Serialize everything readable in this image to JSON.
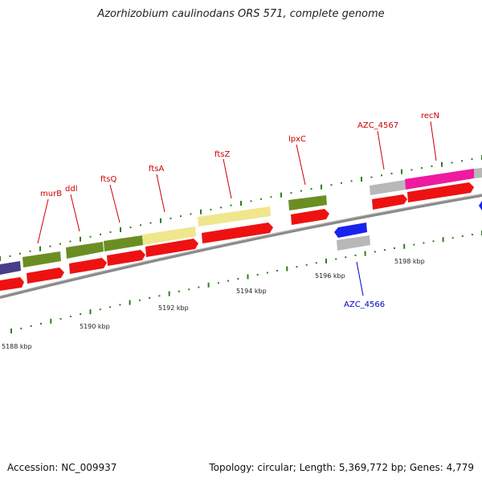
{
  "title": "Azorhizobium caulinodans ORS 571, complete genome",
  "footer": {
    "accession": "Accession: NC_009937",
    "info": "Topology: circular; Length: 5,369,772 bp; Genes: 4,779"
  },
  "colors": {
    "backbone": "#7a7a7a",
    "cds": "#ee1111",
    "gene_olive": "#6b8e23",
    "gene_khaki": "#f0e68c",
    "gene_magenta": "#ee1aa0",
    "gene_blue": "#1a22ee",
    "gene_gray": "#b8b8b8",
    "gene_purple": "#483d8b",
    "tick": "#2e7d1e",
    "label_red": "#cc0000",
    "label_blue": "#0000cc"
  },
  "scale_labels": [
    "5188 kbp",
    "5190 kbp",
    "5192 kbp",
    "5194 kbp",
    "5196 kbp",
    "5198 kbp"
  ],
  "gene_labels": [
    {
      "name": "murB",
      "color": "red"
    },
    {
      "name": "ddl",
      "color": "red"
    },
    {
      "name": "ftsQ",
      "color": "red"
    },
    {
      "name": "ftsA",
      "color": "red"
    },
    {
      "name": "ftsZ",
      "color": "red"
    },
    {
      "name": "lpxC",
      "color": "red"
    },
    {
      "name": "AZC_4567",
      "color": "red"
    },
    {
      "name": "recN",
      "color": "red"
    },
    {
      "name": "AZC_4566",
      "color": "blue"
    }
  ]
}
